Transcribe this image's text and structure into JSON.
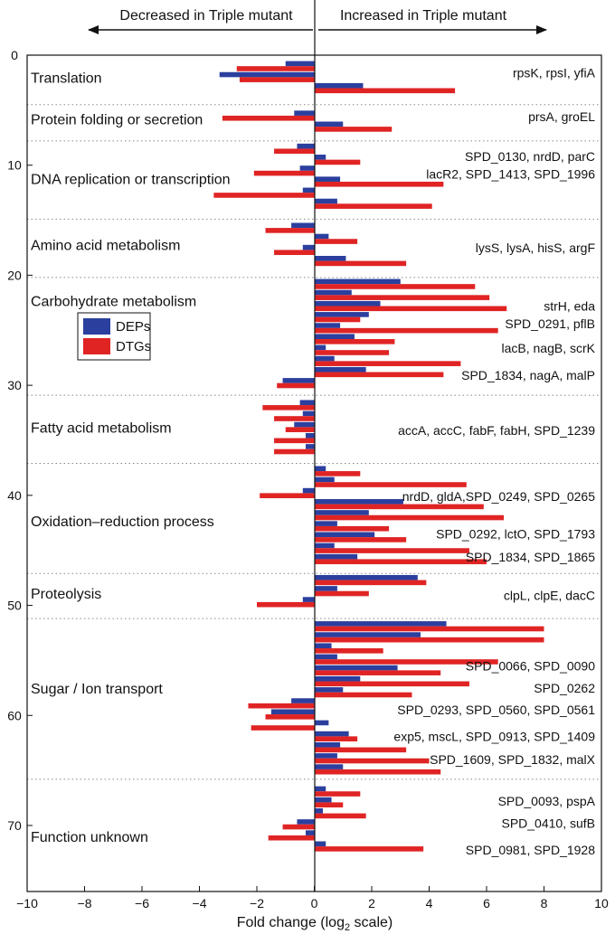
{
  "chart_data": {
    "type": "bar",
    "orientation": "horizontal",
    "xlabel": "Fold change (log",
    "xlabel_sub": "2",
    "xlabel_suffix": " scale)",
    "xlim": [
      -10,
      10
    ],
    "ylim": [
      0,
      76
    ],
    "x_ticks": [
      -10,
      -8,
      -6,
      -4,
      -2,
      0,
      2,
      4,
      6,
      8,
      10
    ],
    "x_tick_labels": [
      "−10",
      "−8",
      "−6",
      "−4",
      "−2",
      "0",
      "2",
      "4",
      "6",
      "8",
      "10"
    ],
    "y_ticks": [
      0,
      10,
      20,
      30,
      40,
      50,
      60,
      70
    ],
    "y_tick_labels": [
      "0",
      "10",
      "20",
      "30",
      "40",
      "50",
      "60",
      "70"
    ],
    "header_left": "Decreased in Triple mutant",
    "header_right": "Increased in Triple mutant",
    "legend": [
      {
        "name": "DEPs",
        "color": "#2b3f9e"
      },
      {
        "name": "DTGs",
        "color": "#e02424"
      }
    ],
    "separators": [
      4.5,
      7.8,
      14.9,
      20.2,
      30.9,
      37.1,
      47.1,
      51.2,
      65.8
    ],
    "categories": [
      {
        "label": "Translation",
        "y": 2
      },
      {
        "label": "Protein folding or secretion",
        "y": 5.8
      },
      {
        "label": "DNA replication or transcription",
        "y": 11.2
      },
      {
        "label": "Amino acid metabolism",
        "y": 17.2
      },
      {
        "label": "Carbohydrate metabolism",
        "y": 22.3
      },
      {
        "label": "Fatty acid metabolism",
        "y": 33.8
      },
      {
        "label": "Oxidation–reduction process",
        "y": 42.3
      },
      {
        "label": "Proteolysis",
        "y": 48.9
      },
      {
        "label": "Sugar / Ion transport",
        "y": 57.5
      },
      {
        "label": "Function unknown",
        "y": 71
      }
    ],
    "gene_labels": [
      {
        "text": "rpsK, rpsI, yfiA",
        "y": 1.6
      },
      {
        "text": "prsA, groEL",
        "y": 5.6
      },
      {
        "text": "SPD_0130, nrdD, parC",
        "y": 9.2
      },
      {
        "text": "lacR2, SPD_1413, SPD_1996",
        "y": 10.8
      },
      {
        "text": "lysS, lysA, hisS, argF",
        "y": 17.5
      },
      {
        "text": "strH, eda",
        "y": 22.8
      },
      {
        "text": "SPD_0291, pflB",
        "y": 24.4
      },
      {
        "text": "lacB, nagB, scrK",
        "y": 26.6
      },
      {
        "text": "SPD_1834, nagA, malP",
        "y": 29.1
      },
      {
        "text": "accA, accC, fabF, fabH, SPD_1239",
        "y": 34.1
      },
      {
        "text": "nrdD, gldA,SPD_0249, SPD_0265",
        "y": 40.1
      },
      {
        "text": "SPD_0292, lctO, SPD_1793",
        "y": 43.5
      },
      {
        "text": "SPD_1834, SPD_1865",
        "y": 45.6
      },
      {
        "text": "clpL, clpE, dacC",
        "y": 49.1
      },
      {
        "text": "SPD_0066, SPD_0090",
        "y": 55.5
      },
      {
        "text": "SPD_0262",
        "y": 57.5
      },
      {
        "text": "SPD_0293, SPD_0560, SPD_0561",
        "y": 59.5
      },
      {
        "text": "exp5, mscL, SPD_0913, SPD_1409",
        "y": 61.9
      },
      {
        "text": "SPD_1609, SPD_1832, malX",
        "y": 64.0
      },
      {
        "text": "SPD_0093, pspA",
        "y": 67.8
      },
      {
        "text": "SPD_0410, sufB",
        "y": 69.8
      },
      {
        "text": "SPD_0981, SPD_1928",
        "y": 72.2
      }
    ],
    "series": [
      {
        "name": "DEPs",
        "color": "#2b3f9e",
        "bars": [
          {
            "y": 1,
            "value": -1.0
          },
          {
            "y": 2,
            "value": -3.3
          },
          {
            "y": 3,
            "value": 1.7
          },
          {
            "y": 5.5,
            "value": -0.7
          },
          {
            "y": 6.5,
            "value": 1.0
          },
          {
            "y": 8.5,
            "value": -0.6
          },
          {
            "y": 9.5,
            "value": 0.4
          },
          {
            "y": 10.5,
            "value": -0.5
          },
          {
            "y": 11.5,
            "value": 0.9
          },
          {
            "y": 12.5,
            "value": -0.4
          },
          {
            "y": 13.5,
            "value": 0.8
          },
          {
            "y": 15.7,
            "value": -0.8
          },
          {
            "y": 16.7,
            "value": 0.5
          },
          {
            "y": 17.7,
            "value": -0.4
          },
          {
            "y": 18.7,
            "value": 1.1
          },
          {
            "y": 20.8,
            "value": 3.0
          },
          {
            "y": 21.8,
            "value": 1.3
          },
          {
            "y": 22.8,
            "value": 2.3
          },
          {
            "y": 23.8,
            "value": 1.9
          },
          {
            "y": 24.8,
            "value": 0.9
          },
          {
            "y": 25.8,
            "value": 1.4
          },
          {
            "y": 26.8,
            "value": 0.4
          },
          {
            "y": 27.8,
            "value": 0.7
          },
          {
            "y": 28.8,
            "value": 1.8
          },
          {
            "y": 29.8,
            "value": -1.1
          },
          {
            "y": 31.8,
            "value": -0.5
          },
          {
            "y": 32.8,
            "value": -0.4
          },
          {
            "y": 33.8,
            "value": -0.7
          },
          {
            "y": 34.8,
            "value": -0.3
          },
          {
            "y": 35.8,
            "value": -0.3
          },
          {
            "y": 37.8,
            "value": 0.4
          },
          {
            "y": 38.8,
            "value": 0.7
          },
          {
            "y": 39.8,
            "value": -0.4
          },
          {
            "y": 40.8,
            "value": 3.1
          },
          {
            "y": 41.8,
            "value": 1.9
          },
          {
            "y": 42.8,
            "value": 0.8
          },
          {
            "y": 43.8,
            "value": 2.1
          },
          {
            "y": 44.8,
            "value": 0.7
          },
          {
            "y": 45.8,
            "value": 1.5
          },
          {
            "y": 47.7,
            "value": 3.6
          },
          {
            "y": 48.7,
            "value": 0.8
          },
          {
            "y": 49.7,
            "value": -0.4
          },
          {
            "y": 51.9,
            "value": 4.6
          },
          {
            "y": 52.9,
            "value": 3.7
          },
          {
            "y": 53.9,
            "value": 0.6
          },
          {
            "y": 54.9,
            "value": 0.8
          },
          {
            "y": 55.9,
            "value": 2.9
          },
          {
            "y": 56.9,
            "value": 1.6
          },
          {
            "y": 57.9,
            "value": 1.0
          },
          {
            "y": 58.9,
            "value": -0.8
          },
          {
            "y": 59.9,
            "value": -1.5
          },
          {
            "y": 60.9,
            "value": 0.5
          },
          {
            "y": 61.9,
            "value": 1.2
          },
          {
            "y": 62.9,
            "value": 0.9
          },
          {
            "y": 63.9,
            "value": 0.8
          },
          {
            "y": 64.9,
            "value": 1.0
          },
          {
            "y": 66.9,
            "value": 0.4
          },
          {
            "y": 67.9,
            "value": 0.6
          },
          {
            "y": 68.9,
            "value": 0.3
          },
          {
            "y": 69.9,
            "value": -0.6
          },
          {
            "y": 70.9,
            "value": -0.3
          },
          {
            "y": 71.9,
            "value": 0.4
          }
        ]
      },
      {
        "name": "DTGs",
        "color": "#e02424",
        "bars": [
          {
            "y": 1,
            "value": -2.7
          },
          {
            "y": 2,
            "value": -2.6
          },
          {
            "y": 3,
            "value": 4.9
          },
          {
            "y": 5.5,
            "value": -3.2
          },
          {
            "y": 6.5,
            "value": 2.7
          },
          {
            "y": 8.5,
            "value": -1.4
          },
          {
            "y": 9.5,
            "value": 1.6
          },
          {
            "y": 10.5,
            "value": -2.1
          },
          {
            "y": 11.5,
            "value": 4.5
          },
          {
            "y": 12.5,
            "value": -3.5
          },
          {
            "y": 13.5,
            "value": 4.1
          },
          {
            "y": 15.7,
            "value": -1.7
          },
          {
            "y": 16.7,
            "value": 1.5
          },
          {
            "y": 17.7,
            "value": -1.4
          },
          {
            "y": 18.7,
            "value": 3.2
          },
          {
            "y": 20.8,
            "value": 5.6
          },
          {
            "y": 21.8,
            "value": 6.1
          },
          {
            "y": 22.8,
            "value": 6.7
          },
          {
            "y": 23.8,
            "value": 1.6
          },
          {
            "y": 24.8,
            "value": 6.4
          },
          {
            "y": 25.8,
            "value": 2.8
          },
          {
            "y": 26.8,
            "value": 2.6
          },
          {
            "y": 27.8,
            "value": 5.1
          },
          {
            "y": 28.8,
            "value": 4.5
          },
          {
            "y": 29.8,
            "value": -1.3
          },
          {
            "y": 31.8,
            "value": -1.8
          },
          {
            "y": 32.8,
            "value": -1.4
          },
          {
            "y": 33.8,
            "value": -1.0
          },
          {
            "y": 34.8,
            "value": -1.4
          },
          {
            "y": 35.8,
            "value": -1.4
          },
          {
            "y": 37.8,
            "value": 1.6
          },
          {
            "y": 38.8,
            "value": 5.3
          },
          {
            "y": 39.8,
            "value": -1.9
          },
          {
            "y": 40.8,
            "value": 5.9
          },
          {
            "y": 41.8,
            "value": 6.6
          },
          {
            "y": 42.8,
            "value": 2.6
          },
          {
            "y": 43.8,
            "value": 3.2
          },
          {
            "y": 44.8,
            "value": 5.4
          },
          {
            "y": 45.8,
            "value": 6.0
          },
          {
            "y": 47.7,
            "value": 3.9
          },
          {
            "y": 48.7,
            "value": 1.9
          },
          {
            "y": 49.7,
            "value": -2.0
          },
          {
            "y": 51.9,
            "value": 8.0
          },
          {
            "y": 52.9,
            "value": 8.0
          },
          {
            "y": 53.9,
            "value": 2.4
          },
          {
            "y": 54.9,
            "value": 6.4
          },
          {
            "y": 55.9,
            "value": 4.4
          },
          {
            "y": 56.9,
            "value": 5.4
          },
          {
            "y": 57.9,
            "value": 3.4
          },
          {
            "y": 58.9,
            "value": -2.3
          },
          {
            "y": 59.9,
            "value": -1.7
          },
          {
            "y": 60.9,
            "value": -2.2
          },
          {
            "y": 61.9,
            "value": 1.5
          },
          {
            "y": 62.9,
            "value": 3.2
          },
          {
            "y": 63.9,
            "value": 4.0
          },
          {
            "y": 64.9,
            "value": 4.4
          },
          {
            "y": 66.9,
            "value": 1.6
          },
          {
            "y": 67.9,
            "value": 1.0
          },
          {
            "y": 68.9,
            "value": 1.8
          },
          {
            "y": 69.9,
            "value": -1.1
          },
          {
            "y": 70.9,
            "value": -1.6
          },
          {
            "y": 71.9,
            "value": 3.8
          }
        ]
      }
    ]
  }
}
